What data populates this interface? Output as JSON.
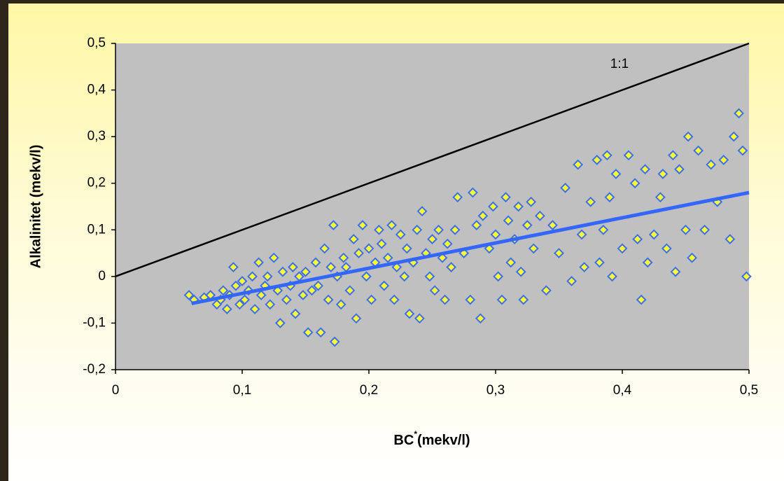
{
  "chart_data": {
    "type": "scatter",
    "ylabel": "Alkalinitet (mekv/l)",
    "xlabel": [
      "BC",
      "*",
      "(mekv/l)"
    ],
    "xlim": [
      0,
      0.5
    ],
    "ylim": [
      -0.2,
      0.5
    ],
    "xticks": [
      0,
      {
        "value": 0.1,
        "label": "0,1"
      },
      {
        "value": 0.2,
        "label": "0,2"
      },
      {
        "value": 0.3,
        "label": "0,3"
      },
      {
        "value": 0.4,
        "label": "0,4"
      },
      {
        "value": 0.5,
        "label": "0,5"
      }
    ],
    "yticks": [
      {
        "value": -0.2,
        "label": "-0,2"
      },
      {
        "value": -0.1,
        "label": "-0,1"
      },
      0,
      {
        "value": 0.1,
        "label": "0,1"
      },
      {
        "value": 0.2,
        "label": "0,2"
      },
      {
        "value": 0.3,
        "label": "0,3"
      },
      {
        "value": 0.4,
        "label": "0,4"
      },
      {
        "value": 0.5,
        "label": "0,5"
      }
    ],
    "marker_fill": "#ffff33",
    "marker_stroke": "#3f6fe8",
    "x": [
      0.058,
      0.062,
      0.07,
      0.075,
      0.08,
      0.083,
      0.085,
      0.088,
      0.09,
      0.093,
      0.095,
      0.098,
      0.1,
      0.102,
      0.105,
      0.108,
      0.11,
      0.113,
      0.115,
      0.118,
      0.12,
      0.122,
      0.125,
      0.128,
      0.13,
      0.132,
      0.135,
      0.138,
      0.14,
      0.142,
      0.145,
      0.148,
      0.15,
      0.152,
      0.155,
      0.158,
      0.16,
      0.162,
      0.165,
      0.168,
      0.17,
      0.172,
      0.173,
      0.175,
      0.178,
      0.18,
      0.182,
      0.185,
      0.188,
      0.19,
      0.192,
      0.195,
      0.198,
      0.2,
      0.202,
      0.205,
      0.208,
      0.21,
      0.212,
      0.215,
      0.218,
      0.22,
      0.222,
      0.225,
      0.228,
      0.23,
      0.232,
      0.235,
      0.238,
      0.24,
      0.242,
      0.245,
      0.248,
      0.25,
      0.252,
      0.255,
      0.258,
      0.26,
      0.262,
      0.265,
      0.268,
      0.27,
      0.275,
      0.28,
      0.282,
      0.285,
      0.288,
      0.29,
      0.295,
      0.298,
      0.3,
      0.302,
      0.305,
      0.308,
      0.31,
      0.312,
      0.315,
      0.318,
      0.32,
      0.322,
      0.325,
      0.328,
      0.33,
      0.335,
      0.34,
      0.345,
      0.35,
      0.355,
      0.36,
      0.365,
      0.368,
      0.37,
      0.375,
      0.38,
      0.382,
      0.385,
      0.388,
      0.39,
      0.392,
      0.395,
      0.4,
      0.405,
      0.41,
      0.412,
      0.415,
      0.418,
      0.42,
      0.425,
      0.43,
      0.432,
      0.435,
      0.44,
      0.442,
      0.445,
      0.45,
      0.452,
      0.455,
      0.46,
      0.465,
      0.47,
      0.475,
      0.48,
      0.485,
      0.488,
      0.492,
      0.495,
      0.498
    ],
    "y": [
      -0.04,
      -0.05,
      -0.045,
      -0.04,
      -0.06,
      -0.05,
      -0.03,
      -0.07,
      -0.04,
      0.02,
      -0.02,
      -0.06,
      -0.01,
      -0.05,
      -0.03,
      0.0,
      -0.07,
      0.03,
      -0.04,
      -0.02,
      0.0,
      -0.06,
      0.04,
      -0.03,
      -0.1,
      0.01,
      -0.05,
      -0.02,
      0.02,
      -0.08,
      0.0,
      -0.04,
      0.01,
      -0.12,
      -0.03,
      0.03,
      -0.02,
      -0.12,
      0.06,
      -0.05,
      0.02,
      0.11,
      -0.14,
      0.0,
      -0.06,
      0.04,
      0.02,
      -0.03,
      0.08,
      -0.09,
      0.05,
      0.11,
      0.0,
      0.06,
      -0.05,
      0.03,
      0.1,
      0.07,
      -0.02,
      0.04,
      0.11,
      -0.05,
      0.02,
      0.09,
      0.0,
      0.06,
      -0.08,
      0.03,
      0.1,
      -0.09,
      0.14,
      0.05,
      0.0,
      0.08,
      -0.03,
      0.1,
      0.04,
      -0.05,
      0.07,
      0.02,
      0.1,
      0.17,
      0.05,
      -0.05,
      0.18,
      0.11,
      -0.09,
      0.13,
      0.06,
      0.15,
      0.09,
      0.0,
      -0.05,
      0.17,
      0.12,
      0.03,
      0.08,
      0.15,
      0.01,
      -0.05,
      0.11,
      0.16,
      0.06,
      0.13,
      -0.03,
      0.11,
      0.05,
      0.19,
      -0.01,
      0.24,
      0.09,
      0.02,
      0.16,
      0.25,
      0.03,
      0.1,
      0.26,
      0.17,
      0.0,
      0.22,
      0.06,
      0.26,
      0.2,
      0.08,
      -0.05,
      0.23,
      0.03,
      0.09,
      0.17,
      0.22,
      0.06,
      0.26,
      0.01,
      0.23,
      0.1,
      0.3,
      0.04,
      0.27,
      0.1,
      0.24,
      0.16,
      0.25,
      0.08,
      0.3,
      0.35,
      0.27,
      0.0
    ],
    "reference_line": {
      "label": "1:1",
      "x": [
        0,
        0.5
      ],
      "y": [
        0,
        0.5
      ],
      "color": "#000000"
    },
    "trendline": {
      "x": [
        0.06,
        0.5
      ],
      "y": [
        -0.058,
        0.18
      ],
      "color": "#3366ff"
    }
  }
}
